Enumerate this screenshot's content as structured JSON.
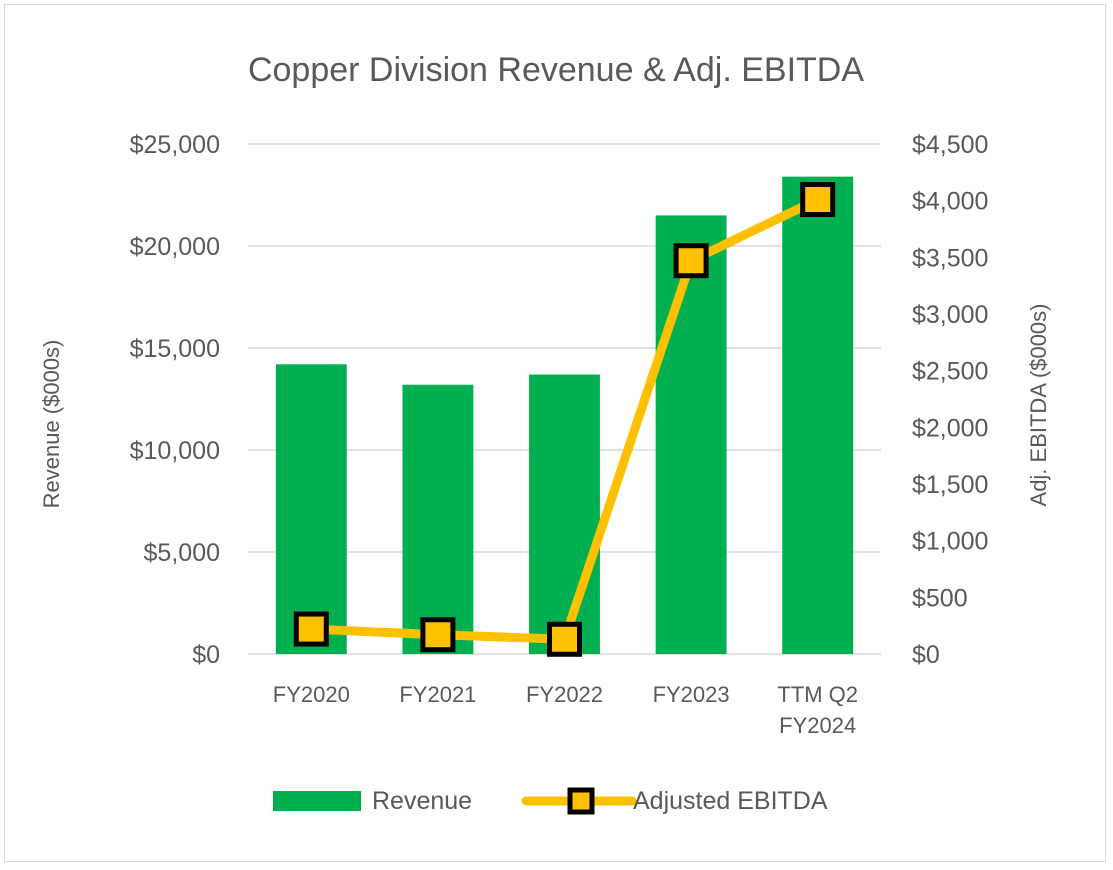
{
  "chart_data": {
    "type": "bar",
    "title": "Copper Division Revenue & Adj. EBITDA",
    "categories": [
      [
        "FY2020"
      ],
      [
        "FY2021"
      ],
      [
        "FY2022"
      ],
      [
        "FY2023"
      ],
      [
        "TTM Q2",
        "FY2024"
      ]
    ],
    "series": [
      {
        "name": "Revenue",
        "type": "bar",
        "axis": "left",
        "color": "#00b050",
        "values": [
          14200,
          13200,
          13700,
          21500,
          23400
        ]
      },
      {
        "name": "Adjusted EBITDA",
        "type": "line",
        "axis": "right",
        "color": "#ffc000",
        "marker_border": "#000000",
        "values": [
          220,
          170,
          130,
          3470,
          4010
        ]
      }
    ],
    "y_left": {
      "label": "Revenue ($000s)",
      "min": 0,
      "max": 25000,
      "step": 5000,
      "ticks": [
        "$0",
        "$5,000",
        "$10,000",
        "$15,000",
        "$20,000",
        "$25,000"
      ]
    },
    "y_right": {
      "label": "Adj. EBITDA ($000s)",
      "min": 0,
      "max": 4500,
      "step": 500,
      "ticks": [
        "$0",
        "$500",
        "$1,000",
        "$1,500",
        "$2,000",
        "$2,500",
        "$3,000",
        "$3,500",
        "$4,000",
        "$4,500"
      ]
    },
    "grid": true,
    "legend_position": "bottom",
    "colors": {
      "text": "#595959",
      "grid": "#d9d9d9"
    }
  }
}
